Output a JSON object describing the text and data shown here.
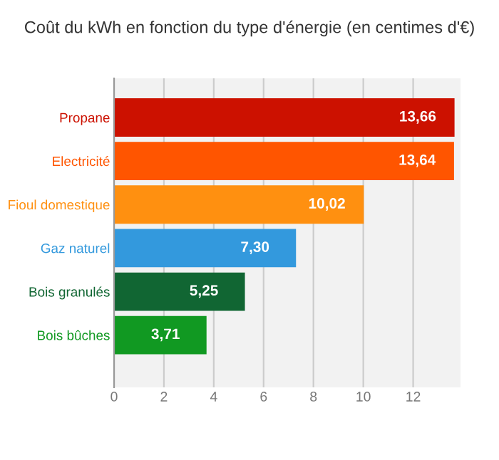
{
  "chart_data": {
    "type": "bar",
    "orientation": "horizontal",
    "title": "Coût du kWh en fonction du type d'énergie (en centimes d'€)",
    "categories": [
      "Propane",
      "Electricité",
      "Fioul domestique",
      "Gaz naturel",
      "Bois granulés",
      "Bois bûches"
    ],
    "values": [
      13.66,
      13.64,
      10.02,
      7.3,
      5.25,
      3.71
    ],
    "value_labels": [
      "13,66",
      "13,64",
      "10,02",
      "7,30",
      "5,25",
      "3,71"
    ],
    "colors": [
      "#cc1100",
      "#ff5500",
      "#ff9010",
      "#3399dd",
      "#116633",
      "#119922"
    ],
    "xlim": [
      0,
      13.9
    ],
    "xticks": [
      0,
      2,
      4,
      6,
      8,
      10,
      12
    ],
    "grid": "x"
  }
}
